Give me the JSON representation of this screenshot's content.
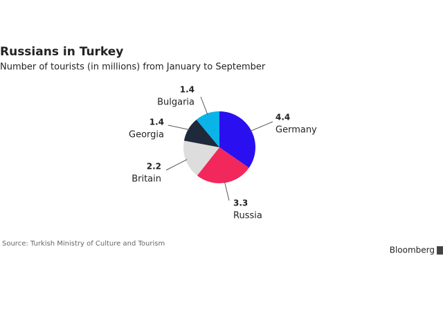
{
  "chart_data": {
    "type": "pie",
    "title": "Russians in Turkey",
    "subtitle": "Number of tourists (in millions) from January to September",
    "source": "Source: Turkish Ministry of Culture and Tourism",
    "brand": "Bloomberg",
    "categories": [
      "Germany",
      "Russia",
      "Britain",
      "Georgia",
      "Bulgaria"
    ],
    "values": [
      4.4,
      3.3,
      2.2,
      1.4,
      1.4
    ],
    "colors": [
      "#2a10f0",
      "#f2275c",
      "#dddddd",
      "#1e2a3c",
      "#0ab4e8"
    ]
  }
}
